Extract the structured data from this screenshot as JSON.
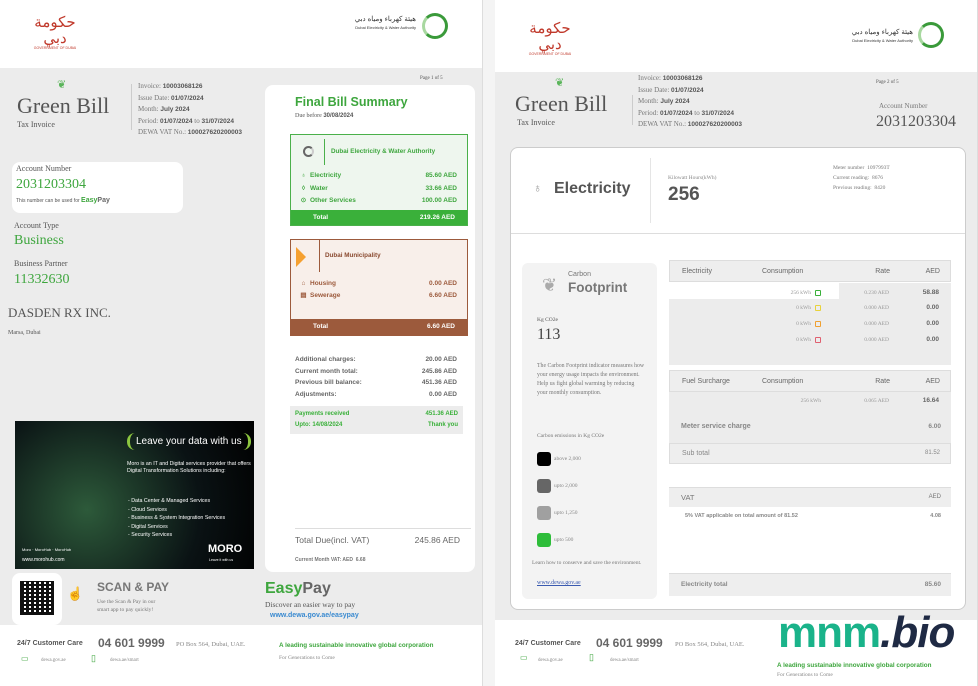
{
  "header": {
    "gov_logo_text": "GOVERNMENT OF DUBAI",
    "dewa_logo_text": "Dubai Electricity & Water Authority"
  },
  "invoice": {
    "brand": "Green Bill",
    "subtitle": "Tax Invoice",
    "invoice_label": "Invoice:",
    "invoice_no": "10003068126",
    "issue_label": "Issue Date:",
    "issue_date": "01/07/2024",
    "month_label": "Month:",
    "month": "July 2024",
    "period_label": "Period:",
    "period_from": "01/07/2024",
    "period_to_word": "to",
    "period_to": "31/07/2024",
    "vat_label": "DEWA VAT No.:",
    "vat_no": "100027620200003"
  },
  "page1": {
    "page_num": "Page 1 of 5",
    "account_label": "Account Number",
    "account_number": "2031203304",
    "easypay_note": "This number can be used for",
    "easy": "Easy",
    "pay": "Pay",
    "account_type_label": "Account Type",
    "account_type": "Business",
    "partner_label": "Business Partner",
    "partner": "11332630",
    "customer_name": "DASDEN RX INC.",
    "customer_address": "Marsa, Dubai",
    "ad": {
      "headline": "Leave your data with us",
      "body": "Moro is an IT and Digital services provider that offers Digital Transformation Solutions including:",
      "items": [
        "- Data Center & Managed Services",
        "- Cloud Services",
        "- Business & System Integration Services",
        "- Digital Services",
        "- Security Services"
      ],
      "social": [
        "Moro",
        "MoroHub",
        "MoroHub"
      ],
      "url": "www.morohub.com",
      "logo": "MORO",
      "tagline": "Leave it with us"
    },
    "summary": {
      "title": "Final Bill Summary",
      "due_label": "Due before",
      "due_date": "30/08/2024",
      "dewa": {
        "name": "Dubai Electricity & Water Authority",
        "rows": [
          {
            "label": "Electricity",
            "amount": "85.60 AED",
            "icon": "bulb-icon"
          },
          {
            "label": "Water",
            "amount": "33.66 AED",
            "icon": "drop-icon"
          },
          {
            "label": "Other Services",
            "amount": "100.00 AED",
            "icon": "target-icon"
          }
        ],
        "total_label": "Total",
        "total": "219.26 AED"
      },
      "dm": {
        "name": "Dubai Municipality",
        "rows": [
          {
            "label": "Housing",
            "amount": "0.00 AED",
            "icon": "house-icon"
          },
          {
            "label": "Sewerage",
            "amount": "6.60 AED",
            "icon": "sewer-icon"
          }
        ],
        "total_label": "Total",
        "total": "6.60 AED"
      },
      "charges": [
        {
          "label": "Additional charges:",
          "amount": "20.00 AED"
        },
        {
          "label": "Current month total:",
          "amount": "245.86 AED"
        },
        {
          "label": "Previous bill balance:",
          "amount": "451.36 AED"
        },
        {
          "label": "Adjustments:",
          "amount": "0.00 AED"
        }
      ],
      "payments": {
        "label": "Payments received",
        "amount": "451.36 AED",
        "upto": "Upto: 14/08/2024",
        "thanks": "Thank you"
      },
      "total_due_label": "Total Due(incl. VAT)",
      "total_due": "245.86 AED",
      "vat_label": "Current Month VAT: AED",
      "vat": "6.68"
    },
    "scan": {
      "title": "SCAN & PAY",
      "desc1": "Use the Scan & Pay in our",
      "desc2": "smart app to pay quickly!"
    },
    "easypay": {
      "easy": "Easy",
      "pay": "Pay",
      "desc": "Discover an easier way to pay",
      "url": "www.dewa.gov.ae/easypay"
    }
  },
  "footer": {
    "care_label": "24/7 Customer Care",
    "phone": "04 601 9999",
    "address": "PO Box 564, Dubai, UAE.",
    "slogan": "A leading sustainable innovative global corporation",
    "tagline": "For Generations to Come",
    "web": "dewa.gov.ae",
    "app": "dewa.ae/smart"
  },
  "page2": {
    "page_num": "Page 2 of 5",
    "account_label": "Account Number",
    "account_number": "2031203304",
    "service": "Electricity",
    "kwh_label": "Kilowatt Hours(kWh)",
    "kwh": "256",
    "meter_label": "Meter number",
    "meter": "1097993T",
    "current_label": "Current reading:",
    "current": "8676",
    "previous_label": "Previous reading:",
    "previous": "8420",
    "carbon": {
      "title1": "Carbon",
      "title2": "Footprint",
      "unit": "Kg CO2e",
      "value": "113",
      "desc": "The Carbon Footprint indicator measures how your energy usage impacts the environment. Help us fight global warming by reducing your monthly consumption.",
      "legend_title": "Carbon emissions in Kg CO2e",
      "legend": [
        {
          "label": "above 2,000",
          "color": "#000000"
        },
        {
          "label": "upto 2,000",
          "color": "#666666"
        },
        {
          "label": "upto 1,250",
          "color": "#a0a0a0"
        },
        {
          "label": "upto 500",
          "color": "#2ebd3a"
        }
      ],
      "learn": "Learn how to conserve and save the environment.",
      "link": "www.dewa.gov.ae"
    },
    "elec_table": {
      "headers": [
        "Electricity",
        "Consumption",
        "Rate",
        "AED"
      ],
      "rows": [
        {
          "consumption": "256 kWh",
          "slab_color": "#3ab03a",
          "rate": "0.230 AED",
          "aed": "58.88"
        },
        {
          "consumption": "0 kWh",
          "slab_color": "#e8d23a",
          "rate": "0.000 AED",
          "aed": "0.00"
        },
        {
          "consumption": "0 kWh",
          "slab_color": "#f0a030",
          "rate": "0.000 AED",
          "aed": "0.00"
        },
        {
          "consumption": "0 kWh",
          "slab_color": "#e06070",
          "rate": "0.000 AED",
          "aed": "0.00"
        }
      ]
    },
    "fuel_table": {
      "headers": [
        "Fuel Surcharge",
        "Consumption",
        "Rate",
        "AED"
      ],
      "row": {
        "consumption": "256 kWh",
        "rate": "0.065 AED",
        "aed": "16.64"
      }
    },
    "meter_service_label": "Meter service charge",
    "meter_service": "6.00",
    "subtotal_label": "Sub total",
    "subtotal": "81.52",
    "vat_header": "VAT",
    "vat_aed": "AED",
    "vat_desc_pct": "5%",
    "vat_desc": "VAT applicable on total amount of 81.52",
    "vat_amount": "4.08",
    "elec_total_label": "Electricity total",
    "elec_total": "85.60"
  },
  "watermark": {
    "part1": "mnm",
    "part2": ".bio"
  }
}
